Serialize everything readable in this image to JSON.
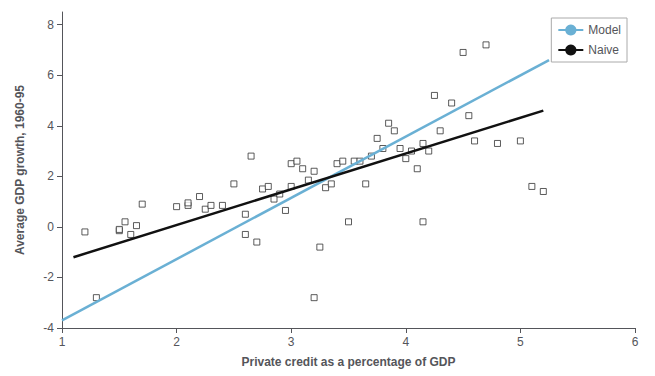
{
  "chart_data": {
    "type": "scatter",
    "xlabel": "Private credit as a percentage of GDP",
    "ylabel": "Average GDP growth, 1960-95",
    "xlim": [
      1.0,
      6.0
    ],
    "ylim": [
      -4.0,
      8.5
    ],
    "xticks": [
      1,
      2,
      3,
      4,
      5,
      6
    ],
    "yticks": [
      -4,
      -2,
      0,
      2,
      4,
      6,
      8
    ],
    "grid": false,
    "legend": "upper right",
    "series": [
      {
        "type": "scatter",
        "marker": "square",
        "color": "#333333",
        "x": [
          1.2,
          1.3,
          1.5,
          1.55,
          1.6,
          1.65,
          1.7,
          2.0,
          2.1,
          2.2,
          2.25,
          2.3,
          2.4,
          2.5,
          2.6,
          2.65,
          2.7,
          2.75,
          2.8,
          2.85,
          2.9,
          2.95,
          3.0,
          3.0,
          3.05,
          3.1,
          3.15,
          3.2,
          3.25,
          3.3,
          3.35,
          3.4,
          3.45,
          3.5,
          3.55,
          3.6,
          3.65,
          3.7,
          3.75,
          3.8,
          3.85,
          3.9,
          3.95,
          4.0,
          4.05,
          4.1,
          4.15,
          4.2,
          4.25,
          4.3,
          4.4,
          4.5,
          4.55,
          4.6,
          4.7,
          4.8,
          5.0,
          5.1,
          5.2,
          1.5,
          2.1,
          2.6,
          3.2,
          4.15
        ],
        "values": [
          -0.2,
          -2.8,
          -0.15,
          0.2,
          -0.3,
          0.05,
          0.9,
          0.8,
          0.85,
          1.2,
          0.7,
          0.85,
          0.85,
          1.7,
          0.5,
          2.8,
          -0.6,
          1.5,
          1.6,
          1.1,
          1.3,
          0.65,
          1.6,
          2.5,
          2.6,
          2.3,
          1.85,
          2.2,
          -0.8,
          1.55,
          1.7,
          2.5,
          2.6,
          0.2,
          2.6,
          2.6,
          1.7,
          2.8,
          3.5,
          3.1,
          4.1,
          3.8,
          3.1,
          2.7,
          3.0,
          2.3,
          3.3,
          3.0,
          5.2,
          3.8,
          4.9,
          6.9,
          4.4,
          3.4,
          7.2,
          3.3,
          3.4,
          1.6,
          1.4,
          -0.1,
          0.95,
          -0.3,
          -2.8,
          0.2
        ]
      },
      {
        "name": "Model",
        "type": "line",
        "color": "#6ab0d4",
        "x": [
          1.0,
          5.25
        ],
        "values": [
          -3.7,
          6.6
        ]
      },
      {
        "name": "Naive",
        "type": "line",
        "color": "#111111",
        "x": [
          1.1,
          5.2
        ],
        "values": [
          -1.2,
          4.6
        ]
      }
    ]
  }
}
